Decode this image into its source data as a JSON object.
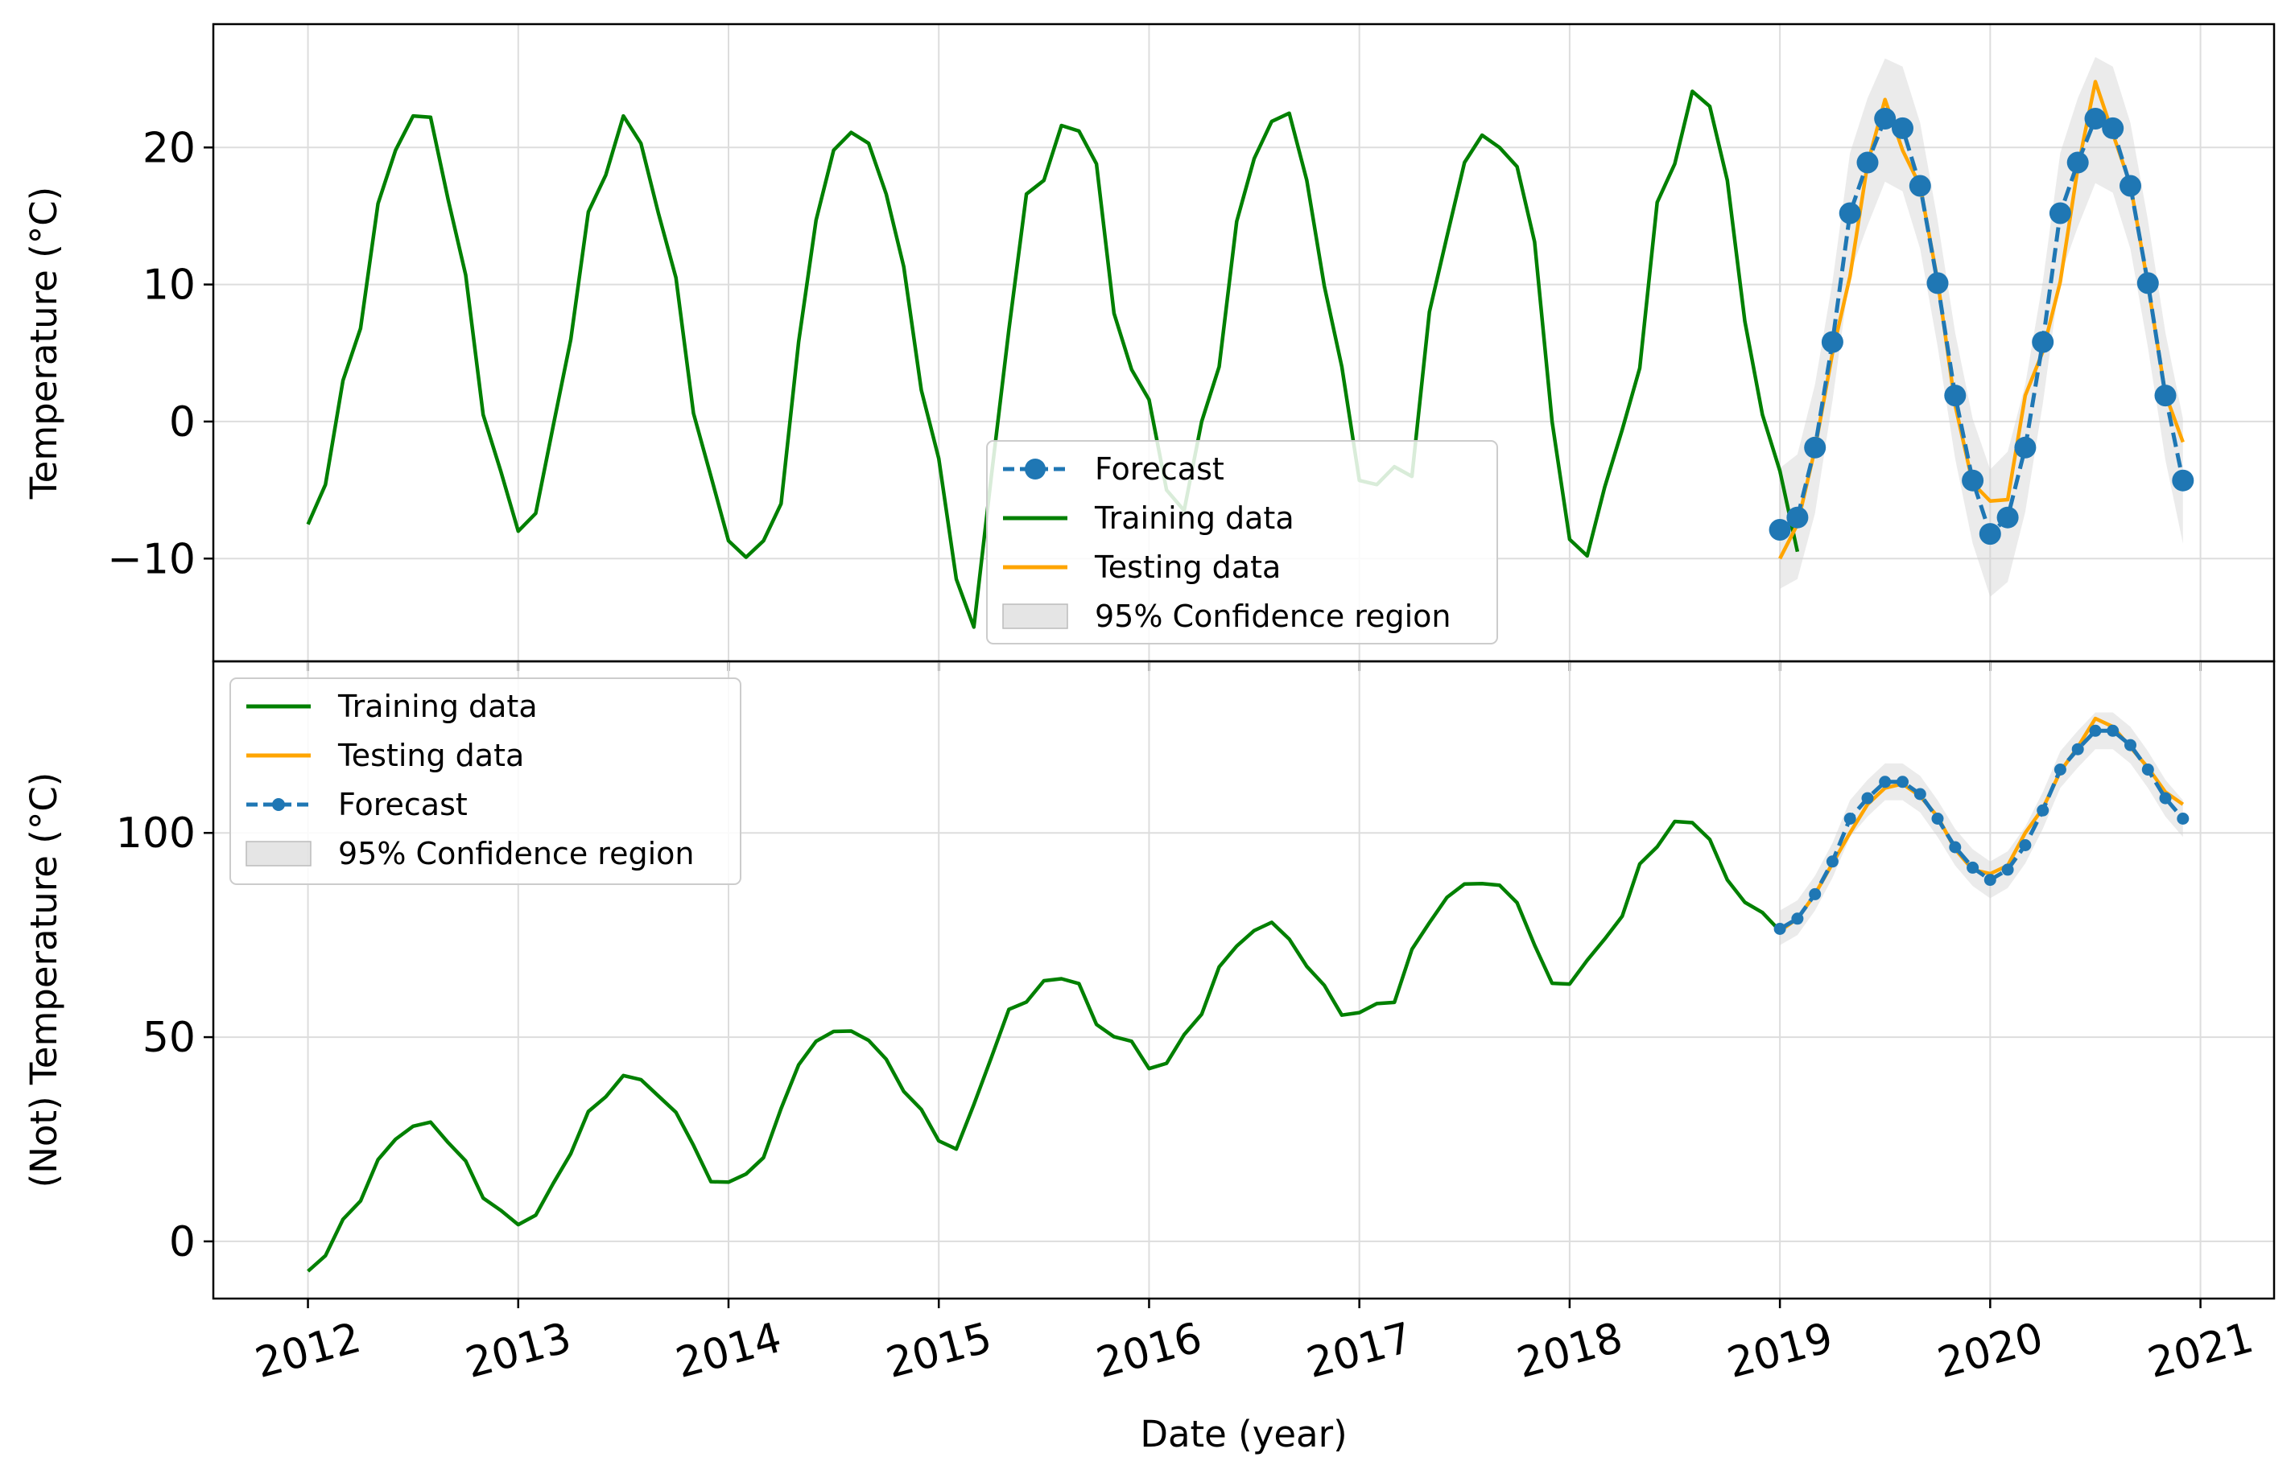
{
  "colors": {
    "training": "#008000",
    "testing": "#FFA500",
    "forecast": "#1f77b4",
    "confidence": "#d3d3d3",
    "grid": "#dddddd"
  },
  "chart_data": [
    {
      "type": "line",
      "ylabel": "Temperature (°C)",
      "xlabel": "",
      "x_tick_labels": [],
      "ylim": [
        -17.5,
        29
      ],
      "yticks": [
        20,
        10,
        0,
        -10
      ],
      "ytick_labels": [
        "20",
        "10",
        "0",
        "−10"
      ],
      "x_start_year": 2012,
      "xlim_years": [
        2011.55,
        2021.35
      ],
      "grid": true,
      "legend_placement": "lower center",
      "legend": [
        "Forecast",
        "Training data",
        "Testing data",
        "95% Confidence region"
      ],
      "series": [
        {
          "name": "Training data",
          "role": "training",
          "x_year": 2012,
          "y": [
            -7.5,
            -4.6,
            3.0,
            6.8,
            15.9,
            19.8,
            22.3,
            22.2,
            16.2,
            10.7,
            0.5,
            -3.6,
            -8.0,
            -6.7,
            -0.3,
            6.0,
            15.3,
            18.0,
            22.3,
            20.3,
            15.2,
            10.5,
            0.6,
            -4.0,
            -8.7,
            -9.9,
            -8.7,
            -6.0,
            5.8,
            14.7,
            19.8,
            21.1,
            20.3,
            16.6,
            11.3,
            2.3,
            -2.7,
            -11.5,
            -15.0,
            -4.0,
            6.7,
            16.6,
            17.6,
            21.6,
            21.2,
            18.8,
            7.9,
            3.8,
            1.6,
            -5.0,
            -6.5,
            0.0,
            4.0,
            14.6,
            19.2,
            21.9,
            22.5,
            17.6,
            9.9,
            4.0,
            -4.3,
            -4.6,
            -3.3,
            -4.0,
            8.0,
            13.5,
            18.9,
            20.9,
            20.0,
            18.6,
            13.1,
            0.0,
            -8.6,
            -9.8,
            -4.8,
            -0.6,
            3.9,
            16.0,
            18.8,
            24.1,
            23.0,
            17.6,
            7.3,
            0.5,
            -3.6,
            -9.5
          ]
        },
        {
          "name": "Testing data",
          "role": "testing",
          "x_year": 2019,
          "y": [
            -10.0,
            -7.5,
            -2.0,
            5.0,
            10.6,
            18.8,
            23.5,
            19.8,
            17.2,
            10.3,
            1.2,
            -4.5,
            -5.8,
            -5.7,
            1.9,
            5.1,
            10.2,
            18.5,
            24.8,
            21.0,
            17.3,
            10.0,
            2.0,
            -1.5
          ]
        },
        {
          "name": "Forecast",
          "role": "forecast",
          "x_year": 2019,
          "y": [
            -7.9,
            -7.0,
            -1.9,
            5.8,
            15.2,
            18.9,
            22.1,
            21.4,
            17.2,
            10.1,
            1.9,
            -4.3,
            -8.2,
            -7.0,
            -1.9,
            5.8,
            15.2,
            18.9,
            22.1,
            21.4,
            17.2,
            10.1,
            1.9,
            -4.3
          ],
          "conf_lower": [
            -12.2,
            -11.5,
            -6.7,
            1.5,
            10.8,
            14.3,
            17.5,
            16.8,
            12.6,
            5.5,
            -2.7,
            -8.9,
            -12.8,
            -11.7,
            -6.6,
            1.3,
            10.6,
            14.2,
            17.4,
            16.7,
            12.6,
            5.4,
            -2.8,
            -8.9
          ],
          "conf_upper": [
            -3.4,
            -2.4,
            2.7,
            10.2,
            19.6,
            23.6,
            26.5,
            25.9,
            21.8,
            14.7,
            6.5,
            0.2,
            -3.5,
            -2.2,
            2.7,
            10.2,
            19.6,
            23.6,
            26.6,
            25.9,
            21.8,
            14.7,
            6.5,
            0.2
          ]
        }
      ]
    },
    {
      "type": "line",
      "ylabel": "(Not) Temperature (°C)",
      "xlabel": "Date (year)",
      "x_tick_labels": [
        "2012",
        "2013",
        "2014",
        "2015",
        "2016",
        "2017",
        "2018",
        "2019",
        "2020",
        "2021"
      ],
      "ylim": [
        -14,
        142
      ],
      "yticks": [
        100,
        50,
        0
      ],
      "ytick_labels": [
        "100",
        "50",
        "0"
      ],
      "x_start_year": 2012,
      "xlim_years": [
        2011.55,
        2021.35
      ],
      "grid": true,
      "legend_placement": "upper left",
      "legend": [
        "Training data",
        "Testing data",
        "Forecast",
        "95% Confidence region"
      ],
      "series": [
        {
          "name": "Training data",
          "role": "training",
          "x_year": 2012,
          "y": [
            -7.3,
            -3.5,
            5.4,
            9.9,
            20.0,
            25.0,
            28.2,
            29.2,
            24.2,
            19.7,
            10.6,
            7.6,
            4.1,
            6.4,
            14.2,
            21.5,
            31.8,
            35.4,
            40.6,
            39.6,
            35.6,
            31.6,
            23.5,
            14.6,
            14.5,
            16.5,
            20.5,
            32.5,
            43.2,
            49.0,
            51.4,
            51.5,
            49.2,
            44.6,
            36.7,
            32.3,
            24.6,
            22.6,
            33.5,
            45.0,
            56.8,
            58.6,
            63.8,
            64.3,
            63.1,
            53.1,
            50.1,
            49.0,
            42.3,
            43.6,
            50.6,
            55.6,
            67.2,
            72.3,
            76.1,
            78.1,
            74.0,
            67.3,
            62.7,
            55.4,
            56.0,
            58.2,
            58.5,
            71.5,
            78.0,
            84.2,
            87.5,
            87.6,
            87.2,
            82.9,
            72.5,
            63.2,
            63.0,
            68.8,
            74.0,
            79.6,
            92.4,
            96.6,
            102.8,
            102.5,
            98.4,
            88.5,
            83.0,
            80.5,
            76.0
          ]
        },
        {
          "name": "Testing data",
          "role": "testing",
          "x_year": 2019,
          "y": [
            76.0,
            79.0,
            85.0,
            92.5,
            100.0,
            107.0,
            111.0,
            112.0,
            109.0,
            104.0,
            96.0,
            91.0,
            90.0,
            92.0,
            100.0,
            106.0,
            115.0,
            121.0,
            128.0,
            126.0,
            121.0,
            116.0,
            110.0,
            107.0
          ]
        },
        {
          "name": "Forecast",
          "role": "forecast",
          "x_year": 2019,
          "y": [
            76.5,
            79.0,
            85.0,
            93.0,
            103.5,
            108.5,
            112.5,
            112.5,
            109.5,
            103.5,
            96.5,
            91.5,
            88.5,
            91.0,
            97.0,
            105.5,
            115.5,
            120.5,
            125.0,
            125.0,
            121.5,
            115.5,
            108.5,
            103.5
          ],
          "conf_lower": [
            72.5,
            75.0,
            81.0,
            89.0,
            99.0,
            104.0,
            108.0,
            108.0,
            105.0,
            99.0,
            92.0,
            87.0,
            84.0,
            86.5,
            92.5,
            101.0,
            111.0,
            116.0,
            120.5,
            120.5,
            117.0,
            111.0,
            104.0,
            99.0
          ],
          "conf_upper": [
            81.0,
            83.5,
            89.5,
            97.5,
            108.0,
            113.0,
            117.0,
            117.0,
            114.0,
            108.0,
            101.0,
            96.0,
            93.0,
            95.5,
            101.5,
            110.0,
            120.0,
            125.0,
            129.5,
            129.5,
            126.0,
            120.0,
            113.0,
            108.0
          ]
        }
      ]
    }
  ]
}
